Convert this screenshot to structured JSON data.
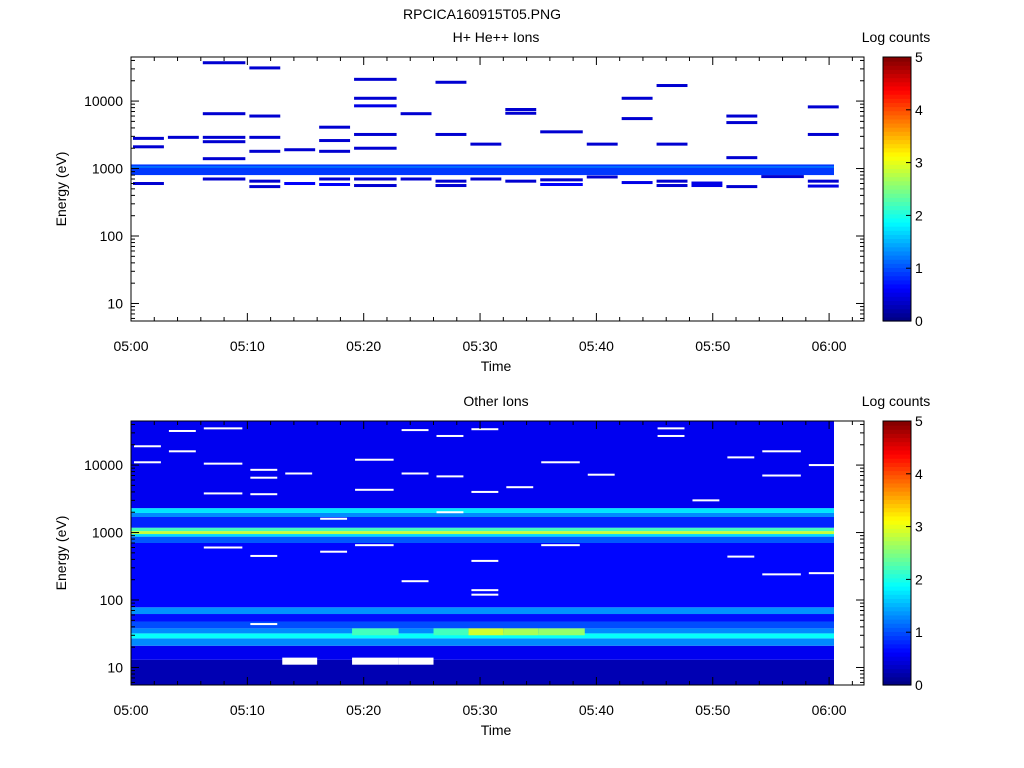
{
  "figure": {
    "title": "RPCICA160915T05.PNG"
  },
  "chart_data": [
    {
      "type": "heatmap",
      "title": "H+ He++ Ions",
      "xlabel": "Time",
      "ylabel": "Energy (eV)",
      "colorbar_label": "Log counts",
      "x_range": [
        "05:00",
        "06:03"
      ],
      "x_ticks": [
        "05:00",
        "05:10",
        "05:20",
        "05:30",
        "05:40",
        "05:50",
        "06:00"
      ],
      "y_scale": "log",
      "y_range": [
        5.5,
        45000
      ],
      "y_ticks": [
        10,
        100,
        1000,
        10000
      ],
      "color_range": [
        0,
        5
      ],
      "color_ticks": [
        0,
        1,
        2,
        3,
        4,
        5
      ],
      "colormap": "jet",
      "time_columns": [
        "05:00",
        "05:03",
        "05:06",
        "05:10",
        "05:13",
        "05:16",
        "05:19",
        "05:23",
        "05:26",
        "05:29",
        "05:32",
        "05:35",
        "05:39",
        "05:42",
        "05:45",
        "05:48",
        "05:51",
        "05:54",
        "05:58",
        "06:01"
      ],
      "persistent_bands": [
        {
          "e_low": 800,
          "e_high": 1150,
          "value": 0.9
        },
        {
          "e_low": 1030,
          "e_high": 1080,
          "value": 1.25
        }
      ],
      "cells": [
        {
          "col": 0,
          "e": 2800,
          "v": 0.4
        },
        {
          "col": 0,
          "e": 2100,
          "v": 0.4
        },
        {
          "col": 0,
          "e": 600,
          "v": 0.4
        },
        {
          "col": 1,
          "e": 2900,
          "v": 0.4
        },
        {
          "col": 2,
          "e": 37000,
          "v": 0.4
        },
        {
          "col": 2,
          "e": 6500,
          "v": 0.4
        },
        {
          "col": 2,
          "e": 2900,
          "v": 0.4
        },
        {
          "col": 2,
          "e": 2500,
          "v": 0.4
        },
        {
          "col": 2,
          "e": 1400,
          "v": 0.4
        },
        {
          "col": 2,
          "e": 700,
          "v": 0.4
        },
        {
          "col": 3,
          "e": 31000,
          "v": 0.4
        },
        {
          "col": 3,
          "e": 6000,
          "v": 0.4
        },
        {
          "col": 3,
          "e": 2900,
          "v": 0.4
        },
        {
          "col": 3,
          "e": 1800,
          "v": 0.4
        },
        {
          "col": 3,
          "e": 650,
          "v": 0.4
        },
        {
          "col": 3,
          "e": 540,
          "v": 0.4
        },
        {
          "col": 4,
          "e": 1900,
          "v": 0.4
        },
        {
          "col": 4,
          "e": 600,
          "v": 0.6
        },
        {
          "col": 5,
          "e": 4100,
          "v": 0.4
        },
        {
          "col": 5,
          "e": 2600,
          "v": 0.4
        },
        {
          "col": 5,
          "e": 1800,
          "v": 0.4
        },
        {
          "col": 5,
          "e": 700,
          "v": 0.4
        },
        {
          "col": 5,
          "e": 580,
          "v": 0.6
        },
        {
          "col": 6,
          "e": 21000,
          "v": 0.4
        },
        {
          "col": 6,
          "e": 11000,
          "v": 0.4
        },
        {
          "col": 6,
          "e": 8500,
          "v": 0.5
        },
        {
          "col": 6,
          "e": 3200,
          "v": 0.4
        },
        {
          "col": 6,
          "e": 2000,
          "v": 0.4
        },
        {
          "col": 6,
          "e": 700,
          "v": 0.4
        },
        {
          "col": 6,
          "e": 560,
          "v": 0.4
        },
        {
          "col": 7,
          "e": 6500,
          "v": 0.4
        },
        {
          "col": 7,
          "e": 700,
          "v": 0.4
        },
        {
          "col": 8,
          "e": 19000,
          "v": 0.4
        },
        {
          "col": 8,
          "e": 3200,
          "v": 0.4
        },
        {
          "col": 8,
          "e": 650,
          "v": 0.4
        },
        {
          "col": 8,
          "e": 560,
          "v": 0.4
        },
        {
          "col": 9,
          "e": 2300,
          "v": 0.4
        },
        {
          "col": 9,
          "e": 700,
          "v": 0.4
        },
        {
          "col": 10,
          "e": 7500,
          "v": 0.4
        },
        {
          "col": 10,
          "e": 6600,
          "v": 0.4
        },
        {
          "col": 10,
          "e": 650,
          "v": 0.4
        },
        {
          "col": 11,
          "e": 3500,
          "v": 0.4
        },
        {
          "col": 11,
          "e": 680,
          "v": 0.4
        },
        {
          "col": 11,
          "e": 580,
          "v": 0.6
        },
        {
          "col": 12,
          "e": 2300,
          "v": 0.4
        },
        {
          "col": 12,
          "e": 750,
          "v": 0.4
        },
        {
          "col": 13,
          "e": 11000,
          "v": 0.4
        },
        {
          "col": 13,
          "e": 5500,
          "v": 0.4
        },
        {
          "col": 13,
          "e": 620,
          "v": 0.5
        },
        {
          "col": 14,
          "e": 17000,
          "v": 0.4
        },
        {
          "col": 14,
          "e": 2300,
          "v": 0.4
        },
        {
          "col": 14,
          "e": 650,
          "v": 0.4
        },
        {
          "col": 14,
          "e": 560,
          "v": 0.4
        },
        {
          "col": 15,
          "e": 610,
          "v": 0.5
        },
        {
          "col": 15,
          "e": 560,
          "v": 0.5
        },
        {
          "col": 16,
          "e": 6000,
          "v": 0.4
        },
        {
          "col": 16,
          "e": 4800,
          "v": 0.4
        },
        {
          "col": 16,
          "e": 1450,
          "v": 0.4
        },
        {
          "col": 16,
          "e": 540,
          "v": 0.4
        },
        {
          "col": 17,
          "e": 760,
          "v": 0.4
        },
        {
          "col": 18,
          "e": 8200,
          "v": 0.4
        },
        {
          "col": 18,
          "e": 3200,
          "v": 0.4
        },
        {
          "col": 18,
          "e": 650,
          "v": 0.4
        },
        {
          "col": 18,
          "e": 550,
          "v": 0.5
        }
      ]
    },
    {
      "type": "heatmap",
      "title": "Other Ions",
      "xlabel": "Time",
      "ylabel": "Energy (eV)",
      "colorbar_label": "Log counts",
      "x_range": [
        "05:00",
        "06:03"
      ],
      "x_ticks": [
        "05:00",
        "05:10",
        "05:20",
        "05:30",
        "05:40",
        "05:50",
        "06:00"
      ],
      "y_scale": "log",
      "y_range": [
        5.5,
        45000
      ],
      "y_ticks": [
        10,
        100,
        1000,
        10000
      ],
      "color_range": [
        0,
        5
      ],
      "color_ticks": [
        0,
        1,
        2,
        3,
        4,
        5
      ],
      "colormap": "jet",
      "time_columns": [
        "05:00",
        "05:03",
        "05:06",
        "05:10",
        "05:13",
        "05:16",
        "05:19",
        "05:23",
        "05:26",
        "05:29",
        "05:32",
        "05:35",
        "05:39",
        "05:42",
        "05:45",
        "05:48",
        "05:51",
        "05:54",
        "05:58",
        "06:01"
      ],
      "bands": [
        {
          "e_low": 5.5,
          "e_high": 13,
          "value": 0.25
        },
        {
          "e_low": 13,
          "e_high": 21,
          "value": 0.55
        },
        {
          "e_low": 21,
          "e_high": 27,
          "value": 1.3
        },
        {
          "e_low": 27,
          "e_high": 32,
          "value": 1.9
        },
        {
          "e_low": 32,
          "e_high": 38,
          "value": 1.3
        },
        {
          "e_low": 38,
          "e_high": 48,
          "value": 1.0
        },
        {
          "e_low": 48,
          "e_high": 62,
          "value": 0.7
        },
        {
          "e_low": 62,
          "e_high": 78,
          "value": 1.35
        },
        {
          "e_low": 78,
          "e_high": 700,
          "value": 0.65
        },
        {
          "e_low": 700,
          "e_high": 870,
          "value": 1.05
        },
        {
          "e_low": 870,
          "e_high": 950,
          "value": 1.7
        },
        {
          "e_low": 950,
          "e_high": 1050,
          "value": 2.85
        },
        {
          "e_low": 1050,
          "e_high": 1180,
          "value": 2.2
        },
        {
          "e_low": 1180,
          "e_high": 1700,
          "value": 0.8
        },
        {
          "e_low": 1700,
          "e_high": 1950,
          "value": 1.3
        },
        {
          "e_low": 1950,
          "e_high": 2300,
          "value": 1.75
        },
        {
          "e_low": 2300,
          "e_high": 45000,
          "value": 0.55
        }
      ],
      "highlights": [
        {
          "col": 9,
          "e_low": 30,
          "e_high": 38,
          "v": 2.9
        },
        {
          "col": 10,
          "e_low": 30,
          "e_high": 38,
          "v": 2.7
        },
        {
          "col": 11,
          "e_low": 30,
          "e_high": 38,
          "v": 2.6
        },
        {
          "col": 6,
          "e_low": 30,
          "e_high": 38,
          "v": 2.2
        },
        {
          "col": 8,
          "e_low": 30,
          "e_high": 38,
          "v": 2.2
        }
      ],
      "empty_cells": [
        {
          "col": 4,
          "e_low": 11,
          "e_high": 14
        },
        {
          "col": 6,
          "e_low": 11,
          "e_high": 14
        },
        {
          "col": 7,
          "e_low": 11,
          "e_high": 14
        }
      ],
      "empty_lines": [
        {
          "col": 0,
          "e": 19000
        },
        {
          "col": 0,
          "e": 11000
        },
        {
          "col": 1,
          "e": 32000
        },
        {
          "col": 1,
          "e": 16000
        },
        {
          "col": 2,
          "e": 35000
        },
        {
          "col": 2,
          "e": 10500
        },
        {
          "col": 2,
          "e": 3800
        },
        {
          "col": 2,
          "e": 600
        },
        {
          "col": 3,
          "e": 8500
        },
        {
          "col": 3,
          "e": 6500
        },
        {
          "col": 3,
          "e": 3700
        },
        {
          "col": 3,
          "e": 450
        },
        {
          "col": 3,
          "e": 44
        },
        {
          "col": 4,
          "e": 7500
        },
        {
          "col": 5,
          "e": 1600
        },
        {
          "col": 5,
          "e": 520
        },
        {
          "col": 6,
          "e": 12000
        },
        {
          "col": 6,
          "e": 4300
        },
        {
          "col": 6,
          "e": 650
        },
        {
          "col": 7,
          "e": 33000
        },
        {
          "col": 7,
          "e": 7500
        },
        {
          "col": 7,
          "e": 190
        },
        {
          "col": 8,
          "e": 27000
        },
        {
          "col": 8,
          "e": 2000
        },
        {
          "col": 8,
          "e": 6800
        },
        {
          "col": 9,
          "e": 34000
        },
        {
          "col": 9,
          "e": 4000
        },
        {
          "col": 9,
          "e": 380
        },
        {
          "col": 9,
          "e": 140
        },
        {
          "col": 9,
          "e": 120
        },
        {
          "col": 10,
          "e": 4700
        },
        {
          "col": 11,
          "e": 11000
        },
        {
          "col": 11,
          "e": 650
        },
        {
          "col": 12,
          "e": 7200
        },
        {
          "col": 14,
          "e": 35000
        },
        {
          "col": 14,
          "e": 27000
        },
        {
          "col": 15,
          "e": 3000
        },
        {
          "col": 16,
          "e": 13000
        },
        {
          "col": 16,
          "e": 440
        },
        {
          "col": 17,
          "e": 16000
        },
        {
          "col": 17,
          "e": 7000
        },
        {
          "col": 17,
          "e": 240
        },
        {
          "col": 18,
          "e": 10000
        },
        {
          "col": 18,
          "e": 250
        }
      ]
    }
  ]
}
